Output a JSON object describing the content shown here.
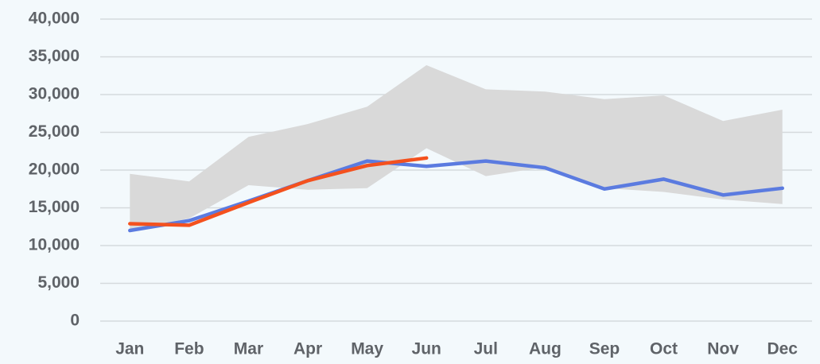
{
  "chart_data": {
    "type": "line",
    "categories": [
      "Jan",
      "Feb",
      "Mar",
      "Apr",
      "May",
      "Jun",
      "Jul",
      "Aug",
      "Sep",
      "Oct",
      "Nov",
      "Dec"
    ],
    "band": {
      "color": "#d9d9d9",
      "lower": [
        12000,
        13600,
        18000,
        17400,
        17600,
        22900,
        19200,
        20400,
        17600,
        17100,
        16100,
        15500
      ],
      "upper": [
        19500,
        18500,
        24400,
        26100,
        28400,
        33900,
        30700,
        30400,
        29400,
        29900,
        26500,
        28000
      ]
    },
    "series": [
      {
        "color": "#5b7be0",
        "values": [
          12000,
          13300,
          15900,
          18600,
          21200,
          20500,
          21200,
          20300,
          17500,
          18800,
          16700,
          17600
        ]
      },
      {
        "color": "#f4511e",
        "values": [
          12900,
          12700,
          15700,
          18600,
          20600,
          21600,
          null,
          null,
          null,
          null,
          null,
          null
        ]
      }
    ],
    "ylim": [
      0,
      40000
    ],
    "yticks": [
      0,
      {
        "value": 5000,
        "label": "5,000"
      },
      {
        "value": 10000,
        "label": "10,000"
      },
      {
        "value": 15000,
        "label": "15,000"
      },
      {
        "value": 20000,
        "label": "20,000"
      },
      {
        "value": 25000,
        "label": "25,000"
      },
      {
        "value": 30000,
        "label": "30,000"
      },
      {
        "value": 35000,
        "label": "35,000"
      },
      {
        "value": 40000,
        "label": "40,000"
      }
    ],
    "grid": true
  }
}
